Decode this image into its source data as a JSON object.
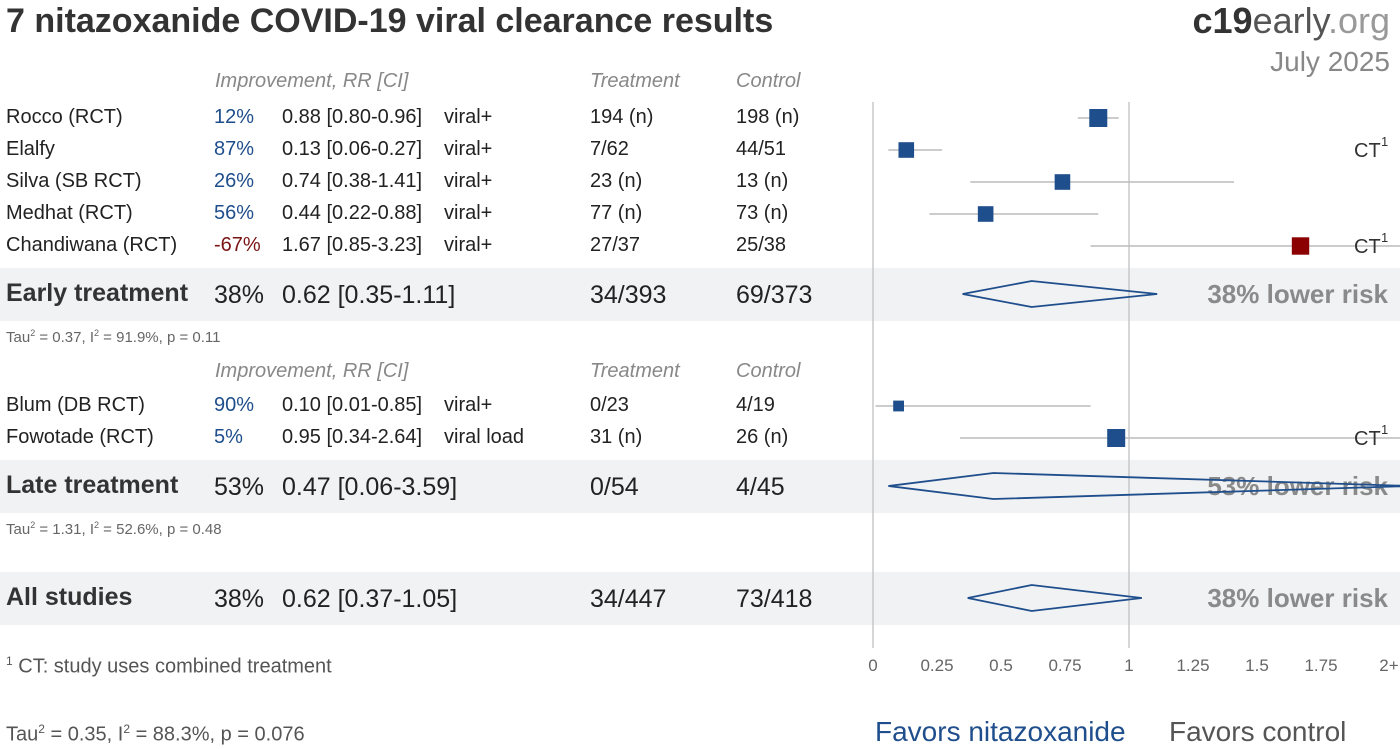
{
  "title": "7 nitazoxanide COVID-19 viral clearance results",
  "brand": {
    "bold": "c19",
    "mid": "early",
    "suffix": ".org",
    "date": "July 2025"
  },
  "headers": {
    "improvement": "Improvement, RR [CI]",
    "treatment": "Treatment",
    "control": "Control"
  },
  "early_studies": [
    {
      "name": "Rocco (RCT)",
      "improvement": "12%",
      "rr_ci": "0.88 [0.80-0.96]",
      "outcome": "viral+",
      "treatment": "194 (n)",
      "control": "198 (n)",
      "rr": 0.88,
      "lo": 0.8,
      "hi": 0.96,
      "weight": 1.0,
      "ct": "",
      "color": "#1f4e8c"
    },
    {
      "name": "Elalfy",
      "improvement": "87%",
      "rr_ci": "0.13 [0.06-0.27]",
      "outcome": "viral+",
      "treatment": "7/62",
      "control": "44/51",
      "rr": 0.13,
      "lo": 0.06,
      "hi": 0.27,
      "weight": 0.8,
      "ct": "CT",
      "color": "#1f4e8c"
    },
    {
      "name": "Silva (SB RCT)",
      "improvement": "26%",
      "rr_ci": "0.74 [0.38-1.41]",
      "outcome": "viral+",
      "treatment": "23 (n)",
      "control": "13 (n)",
      "rr": 0.74,
      "lo": 0.38,
      "hi": 1.41,
      "weight": 0.8,
      "ct": "",
      "color": "#1f4e8c"
    },
    {
      "name": "Medhat (RCT)",
      "improvement": "56%",
      "rr_ci": "0.44 [0.22-0.88]",
      "outcome": "viral+",
      "treatment": "77 (n)",
      "control": "73 (n)",
      "rr": 0.44,
      "lo": 0.22,
      "hi": 0.88,
      "weight": 0.8,
      "ct": "",
      "color": "#1f4e8c"
    },
    {
      "name": "Chandiwana (RCT)",
      "improvement": "-67%",
      "rr_ci": "1.67 [0.85-3.23]",
      "outcome": "viral+",
      "treatment": "27/37",
      "control": "25/38",
      "rr": 1.67,
      "lo": 0.85,
      "hi": 3.23,
      "weight": 0.95,
      "ct": "CT",
      "color": "#8b0000"
    }
  ],
  "early_summary": {
    "name": "Early treatment",
    "improvement": "38%",
    "rr_ci": "0.62 [0.35-1.11]",
    "treatment": "34/393",
    "control": "69/373",
    "risk": "38% lower risk",
    "rr": 0.62,
    "lo": 0.35,
    "hi": 1.11,
    "tau": "Tau",
    "tau_rest": " = 0.37, I",
    "i2_rest": " = 91.9%, p = 0.11"
  },
  "late_studies": [
    {
      "name": "Blum (DB RCT)",
      "improvement": "90%",
      "rr_ci": "0.10 [0.01-0.85]",
      "outcome": "viral+",
      "treatment": "0/23",
      "control": "4/19",
      "rr": 0.1,
      "lo": 0.01,
      "hi": 0.85,
      "weight": 0.4,
      "ct": "",
      "color": "#1f4e8c"
    },
    {
      "name": "Fowotade (RCT)",
      "improvement": "5%",
      "rr_ci": "0.95 [0.34-2.64]",
      "outcome": "viral load",
      "treatment": "31 (n)",
      "control": "26 (n)",
      "rr": 0.95,
      "lo": 0.34,
      "hi": 2.64,
      "weight": 1.0,
      "ct": "CT",
      "color": "#1f4e8c"
    }
  ],
  "late_summary": {
    "name": "Late treatment",
    "improvement": "53%",
    "rr_ci": "0.47 [0.06-3.59]",
    "treatment": "0/54",
    "control": "4/45",
    "risk": "53% lower risk",
    "rr": 0.47,
    "lo": 0.06,
    "hi": 3.59,
    "tau": "Tau",
    "tau_rest": " = 1.31, I",
    "i2_rest": " = 52.6%, p = 0.48"
  },
  "all_summary": {
    "name": "All studies",
    "improvement": "38%",
    "rr_ci": "0.62 [0.37-1.05]",
    "treatment": "34/447",
    "control": "73/418",
    "risk": "38% lower risk",
    "rr": 0.62,
    "lo": 0.37,
    "hi": 1.05
  },
  "footnote": {
    "num": "1",
    "text": " CT: study uses combined treatment"
  },
  "overall_tau": {
    "tau": "Tau",
    "tau_rest": " = 0.35, I",
    "i2_rest": " = 88.3%, p = 0.076"
  },
  "favors": {
    "treatment": "Favors nitazoxanide",
    "control": "Favors control"
  },
  "chart_data": {
    "type": "forest",
    "x_ticks": [
      "0",
      "0.25",
      "0.5",
      "0.75",
      "1",
      "1.25",
      "1.5",
      "1.75",
      "2+"
    ],
    "xlim": [
      0,
      2
    ],
    "reference_line": 1
  },
  "colors": {
    "accent": "#1f4e8c",
    "negative": "#8b0000",
    "ci_line": "#bbbbbb",
    "band": "#f1f2f4"
  }
}
